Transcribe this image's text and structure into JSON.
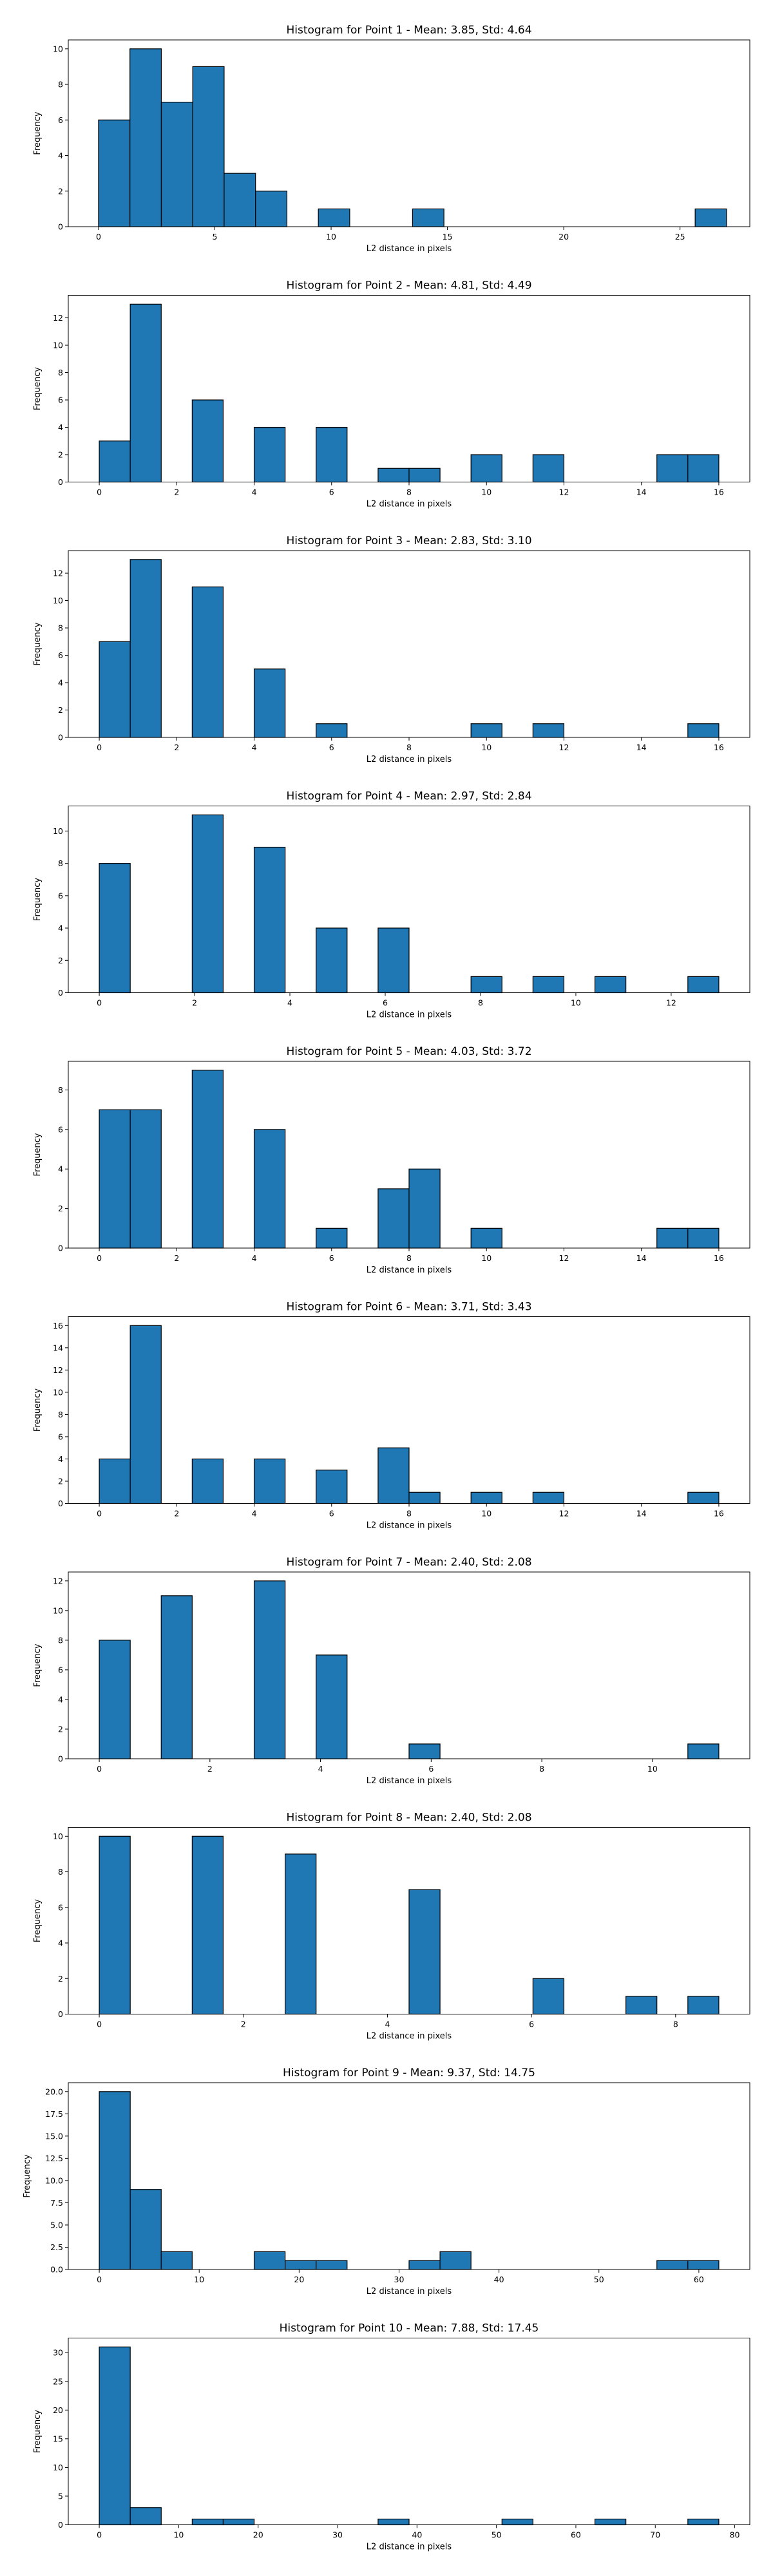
{
  "chart_data": [
    {
      "type": "histogram",
      "title": "Histogram for Point 1 - Mean: 3.85, Std: 4.64",
      "xlabel": "L2 distance in pixels",
      "ylabel": "Frequency",
      "xlim": [
        -1.3,
        28.0
      ],
      "ylim": [
        0,
        10.5
      ],
      "xticks": [
        0,
        5,
        10,
        15,
        20,
        25
      ],
      "xtick_labels": [
        "0",
        "5",
        "10",
        "15",
        "20",
        "25"
      ],
      "yticks": [
        0,
        2,
        4,
        6,
        8,
        10
      ],
      "ytick_labels": [
        "0",
        "2",
        "4",
        "6",
        "8",
        "10"
      ],
      "bin_edges": [
        0,
        1.35,
        2.7,
        4.05,
        5.4,
        6.75,
        8.1,
        9.45,
        10.8,
        12.15,
        13.5,
        14.85,
        16.2,
        17.55,
        18.9,
        20.25,
        21.6,
        22.95,
        24.3,
        25.65,
        27.0
      ],
      "counts": [
        6,
        10,
        7,
        9,
        3,
        2,
        0,
        1,
        0,
        0,
        1,
        0,
        0,
        0,
        0,
        0,
        0,
        0,
        0,
        1
      ],
      "grid": false
    },
    {
      "type": "histogram",
      "title": "Histogram for Point 2 - Mean: 4.81, Std: 4.49",
      "xlabel": "L2 distance in pixels",
      "ylabel": "Frequency",
      "xlim": [
        -0.8,
        16.8
      ],
      "ylim": [
        0,
        13.65
      ],
      "xticks": [
        0,
        2,
        4,
        6,
        8,
        10,
        12,
        14,
        16
      ],
      "xtick_labels": [
        "0",
        "2",
        "4",
        "6",
        "8",
        "10",
        "12",
        "14",
        "16"
      ],
      "yticks": [
        0,
        2,
        4,
        6,
        8,
        10,
        12
      ],
      "ytick_labels": [
        "0",
        "2",
        "4",
        "6",
        "8",
        "10",
        "12"
      ],
      "bin_edges": [
        0,
        0.8,
        1.6,
        2.4,
        3.2,
        4.0,
        4.8,
        5.6,
        6.4,
        7.2,
        8.0,
        8.8,
        9.6,
        10.4,
        11.2,
        12.0,
        12.8,
        13.6,
        14.4,
        15.2,
        16.0
      ],
      "counts": [
        3,
        13,
        0,
        6,
        0,
        4,
        0,
        4,
        0,
        1,
        1,
        0,
        2,
        0,
        2,
        0,
        0,
        0,
        2,
        2
      ],
      "grid": false
    },
    {
      "type": "histogram",
      "title": "Histogram for Point 3 - Mean: 2.83, Std: 3.10",
      "xlabel": "L2 distance in pixels",
      "ylabel": "Frequency",
      "xlim": [
        -0.8,
        16.8
      ],
      "ylim": [
        0,
        13.65
      ],
      "xticks": [
        0,
        2,
        4,
        6,
        8,
        10,
        12,
        14,
        16
      ],
      "xtick_labels": [
        "0",
        "2",
        "4",
        "6",
        "8",
        "10",
        "12",
        "14",
        "16"
      ],
      "yticks": [
        0,
        2,
        4,
        6,
        8,
        10,
        12
      ],
      "ytick_labels": [
        "0",
        "2",
        "4",
        "6",
        "8",
        "10",
        "12"
      ],
      "bin_edges": [
        0,
        0.8,
        1.6,
        2.4,
        3.2,
        4.0,
        4.8,
        5.6,
        6.4,
        7.2,
        8.0,
        8.8,
        9.6,
        10.4,
        11.2,
        12.0,
        12.8,
        13.6,
        14.4,
        15.2,
        16.0
      ],
      "counts": [
        7,
        13,
        0,
        11,
        0,
        5,
        0,
        1,
        0,
        0,
        0,
        0,
        1,
        0,
        1,
        0,
        0,
        0,
        0,
        1
      ],
      "grid": false
    },
    {
      "type": "histogram",
      "title": "Histogram for Point 4 - Mean: 2.97, Std: 2.84",
      "xlabel": "L2 distance in pixels",
      "ylabel": "Frequency",
      "xlim": [
        -0.65,
        13.65
      ],
      "ylim": [
        0,
        11.55
      ],
      "xticks": [
        0,
        2,
        4,
        6,
        8,
        10,
        12
      ],
      "xtick_labels": [
        "0",
        "2",
        "4",
        "6",
        "8",
        "10",
        "12"
      ],
      "yticks": [
        0,
        2,
        4,
        6,
        8,
        10
      ],
      "ytick_labels": [
        "0",
        "2",
        "4",
        "6",
        "8",
        "10"
      ],
      "bin_edges": [
        0,
        0.65,
        1.3,
        1.95,
        2.6,
        3.25,
        3.9,
        4.55,
        5.2,
        5.85,
        6.5,
        7.15,
        7.8,
        8.45,
        9.1,
        9.75,
        10.4,
        11.05,
        11.7,
        12.35,
        13.0
      ],
      "counts": [
        8,
        0,
        0,
        11,
        0,
        9,
        0,
        4,
        0,
        4,
        0,
        0,
        1,
        0,
        1,
        0,
        1,
        0,
        0,
        1
      ],
      "grid": false
    },
    {
      "type": "histogram",
      "title": "Histogram for Point 5 - Mean: 4.03, Std: 3.72",
      "xlabel": "L2 distance in pixels",
      "ylabel": "Frequency",
      "xlim": [
        -0.8,
        16.8
      ],
      "ylim": [
        0,
        9.45
      ],
      "xticks": [
        0,
        2,
        4,
        6,
        8,
        10,
        12,
        14,
        16
      ],
      "xtick_labels": [
        "0",
        "2",
        "4",
        "6",
        "8",
        "10",
        "12",
        "14",
        "16"
      ],
      "yticks": [
        0,
        2,
        4,
        6,
        8
      ],
      "ytick_labels": [
        "0",
        "2",
        "4",
        "6",
        "8"
      ],
      "bin_edges": [
        0,
        0.8,
        1.6,
        2.4,
        3.2,
        4.0,
        4.8,
        5.6,
        6.4,
        7.2,
        8.0,
        8.8,
        9.6,
        10.4,
        11.2,
        12.0,
        12.8,
        13.6,
        14.4,
        15.2,
        16.0
      ],
      "counts": [
        7,
        7,
        0,
        9,
        0,
        6,
        0,
        1,
        0,
        3,
        4,
        0,
        1,
        0,
        0,
        0,
        0,
        0,
        1,
        1
      ],
      "grid": false
    },
    {
      "type": "histogram",
      "title": "Histogram for Point 6 - Mean: 3.71, Std: 3.43",
      "xlabel": "L2 distance in pixels",
      "ylabel": "Frequency",
      "xlim": [
        -0.8,
        16.8
      ],
      "ylim": [
        0,
        16.8
      ],
      "xticks": [
        0,
        2,
        4,
        6,
        8,
        10,
        12,
        14,
        16
      ],
      "xtick_labels": [
        "0",
        "2",
        "4",
        "6",
        "8",
        "10",
        "12",
        "14",
        "16"
      ],
      "yticks": [
        0,
        2,
        4,
        6,
        8,
        10,
        12,
        14,
        16
      ],
      "ytick_labels": [
        "0",
        "2",
        "4",
        "6",
        "8",
        "10",
        "12",
        "14",
        "16"
      ],
      "bin_edges": [
        0,
        0.8,
        1.6,
        2.4,
        3.2,
        4.0,
        4.8,
        5.6,
        6.4,
        7.2,
        8.0,
        8.8,
        9.6,
        10.4,
        11.2,
        12.0,
        12.8,
        13.6,
        14.4,
        15.2,
        16.0
      ],
      "counts": [
        4,
        16,
        0,
        4,
        0,
        4,
        0,
        3,
        0,
        5,
        1,
        0,
        1,
        0,
        1,
        0,
        0,
        0,
        0,
        1
      ],
      "grid": false
    },
    {
      "type": "histogram",
      "title": "Histogram for Point 7 - Mean: 2.40, Std: 2.08",
      "xlabel": "L2 distance in pixels",
      "ylabel": "Frequency",
      "xlim": [
        -0.56,
        11.76
      ],
      "ylim": [
        0,
        12.6
      ],
      "xticks": [
        0,
        2,
        4,
        6,
        8,
        10
      ],
      "xtick_labels": [
        "0",
        "2",
        "4",
        "6",
        "8",
        "10"
      ],
      "yticks": [
        0,
        2,
        4,
        6,
        8,
        10,
        12
      ],
      "ytick_labels": [
        "0",
        "2",
        "4",
        "6",
        "8",
        "10",
        "12"
      ],
      "bin_edges": [
        0,
        0.56,
        1.12,
        1.68,
        2.24,
        2.8,
        3.36,
        3.92,
        4.48,
        5.04,
        5.6,
        6.16,
        6.72,
        7.28,
        7.84,
        8.4,
        8.96,
        9.52,
        10.08,
        10.64,
        11.2
      ],
      "counts": [
        8,
        0,
        11,
        0,
        0,
        12,
        0,
        7,
        0,
        0,
        1,
        0,
        0,
        0,
        0,
        0,
        0,
        0,
        0,
        1
      ],
      "grid": false
    },
    {
      "type": "histogram",
      "title": "Histogram for Point 8 - Mean: 2.40, Std: 2.08",
      "xlabel": "L2 distance in pixels",
      "ylabel": "Frequency",
      "xlim": [
        -0.43,
        9.03
      ],
      "ylim": [
        0,
        10.5
      ],
      "xticks": [
        0,
        2,
        4,
        6,
        8
      ],
      "xtick_labels": [
        "0",
        "2",
        "4",
        "6",
        "8"
      ],
      "yticks": [
        0,
        2,
        4,
        6,
        8,
        10
      ],
      "ytick_labels": [
        "0",
        "2",
        "4",
        "6",
        "8",
        "10"
      ],
      "bin_edges": [
        0,
        0.43,
        0.86,
        1.29,
        1.72,
        2.15,
        2.58,
        3.01,
        3.44,
        3.87,
        4.3,
        4.73,
        5.16,
        5.59,
        6.02,
        6.45,
        6.88,
        7.31,
        7.74,
        8.17,
        8.6
      ],
      "counts": [
        10,
        0,
        0,
        10,
        0,
        0,
        9,
        0,
        0,
        0,
        7,
        0,
        0,
        0,
        2,
        0,
        0,
        1,
        0,
        1
      ],
      "grid": false
    },
    {
      "type": "histogram",
      "title": "Histogram for Point 9 - Mean: 9.37, Std: 14.75",
      "xlabel": "L2 distance in pixels",
      "ylabel": "Frequency",
      "xlim": [
        -3.1,
        65.1
      ],
      "ylim": [
        0,
        21.0
      ],
      "xticks": [
        0,
        10,
        20,
        30,
        40,
        50,
        60
      ],
      "xtick_labels": [
        "0",
        "10",
        "20",
        "30",
        "40",
        "50",
        "60"
      ],
      "yticks": [
        0,
        2.5,
        5,
        7.5,
        10,
        12.5,
        15,
        17.5,
        20
      ],
      "ytick_labels": [
        "0.0",
        "2.5",
        "5.0",
        "7.5",
        "10.0",
        "12.5",
        "15.0",
        "17.5",
        "20.0"
      ],
      "bin_edges": [
        0,
        3.1,
        6.2,
        9.3,
        12.4,
        15.5,
        18.6,
        21.7,
        24.8,
        27.9,
        31.0,
        34.1,
        37.2,
        40.3,
        43.4,
        46.5,
        49.6,
        52.7,
        55.8,
        58.9,
        62.0
      ],
      "counts": [
        20,
        9,
        2,
        0,
        0,
        2,
        1,
        1,
        0,
        0,
        1,
        2,
        0,
        0,
        0,
        0,
        0,
        0,
        1,
        1
      ],
      "grid": false
    },
    {
      "type": "histogram",
      "title": "Histogram for Point 10 - Mean: 7.88, Std: 17.45",
      "xlabel": "L2 distance in pixels",
      "ylabel": "Frequency",
      "xlim": [
        -3.9,
        81.9
      ],
      "ylim": [
        0,
        32.55
      ],
      "xticks": [
        0,
        10,
        20,
        30,
        40,
        50,
        60,
        70,
        80
      ],
      "xtick_labels": [
        "0",
        "10",
        "20",
        "30",
        "40",
        "50",
        "60",
        "70",
        "80"
      ],
      "yticks": [
        0,
        5,
        10,
        15,
        20,
        25,
        30
      ],
      "ytick_labels": [
        "0",
        "5",
        "10",
        "15",
        "20",
        "25",
        "30"
      ],
      "bin_edges": [
        0,
        3.9,
        7.8,
        11.7,
        15.6,
        19.5,
        23.4,
        27.3,
        31.2,
        35.1,
        39.0,
        42.9,
        46.8,
        50.7,
        54.6,
        58.5,
        62.4,
        66.3,
        70.2,
        74.1,
        78.0
      ],
      "counts": [
        31,
        3,
        0,
        1,
        1,
        0,
        0,
        0,
        0,
        1,
        0,
        0,
        0,
        1,
        0,
        0,
        1,
        0,
        0,
        1
      ],
      "grid": false
    }
  ]
}
